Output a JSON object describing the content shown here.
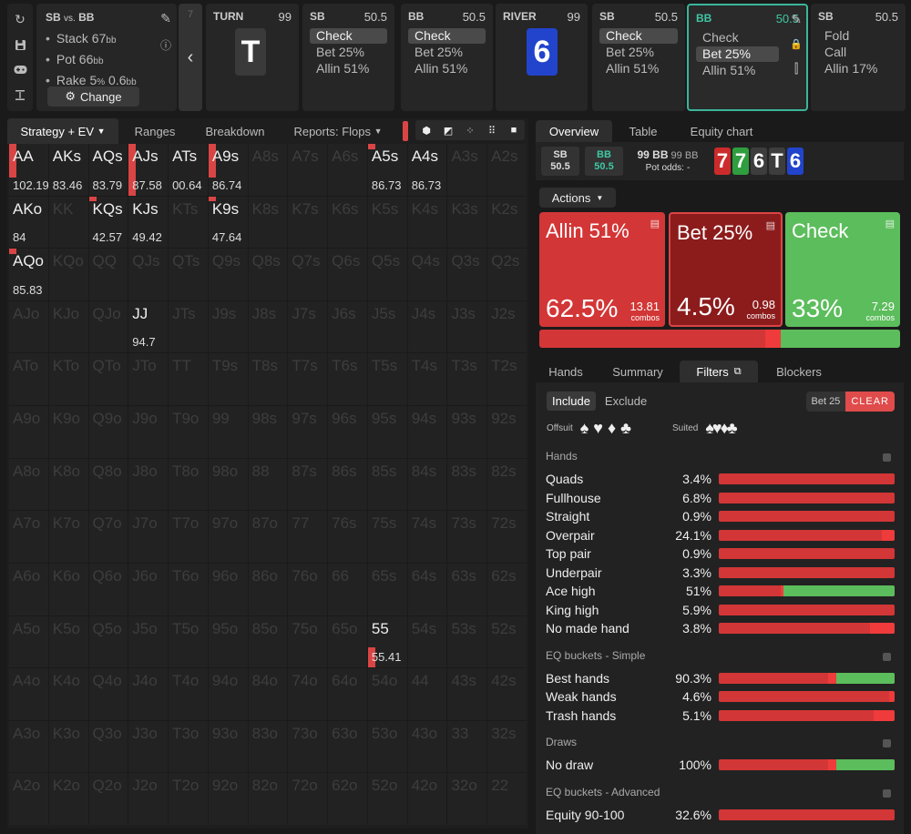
{
  "info": {
    "title_a": "SB",
    "title_vs": "vs.",
    "title_b": "BB",
    "stack_label": "Stack 67",
    "stack_unit": "bb",
    "pot_label": "Pot 66",
    "pot_unit": "bb",
    "rake_label": "Rake 5",
    "rake_pct": "%",
    "rake_cap": " 0.6",
    "rake_unit": "bb",
    "change_label": "Change"
  },
  "nav": {
    "num": "7"
  },
  "nodes": [
    {
      "player": "TURN",
      "value": "99",
      "card": "T",
      "color": "#3a3a3a"
    },
    {
      "player": "SB",
      "value": "50.5",
      "actions": [
        {
          "t": "Check",
          "sel": true
        },
        {
          "t": "Bet 25%",
          "sel": false
        },
        {
          "t": "Allin 51%",
          "sel": false
        }
      ]
    },
    {
      "player": "BB",
      "value": "50.5",
      "actions": [
        {
          "t": "Check",
          "sel": true
        },
        {
          "t": "Bet 25%",
          "sel": false
        },
        {
          "t": "Allin 51%",
          "sel": false
        }
      ]
    },
    {
      "player": "RIVER",
      "value": "99",
      "card": "6",
      "color": "#2244cc"
    },
    {
      "player": "SB",
      "value": "50.5",
      "actions": [
        {
          "t": "Check",
          "sel": true
        },
        {
          "t": "Bet 25%",
          "sel": false
        },
        {
          "t": "Allin 51%",
          "sel": false
        }
      ]
    },
    {
      "player": "BB",
      "value": "50.5",
      "actions": [
        {
          "t": "Check",
          "sel": false
        },
        {
          "t": "Bet 25%",
          "sel": true
        },
        {
          "t": "Allin 51%",
          "sel": false
        }
      ]
    },
    {
      "player": "SB",
      "value": "50.5",
      "actions": [
        {
          "t": "Fold",
          "sel": false
        },
        {
          "t": "Call",
          "sel": false
        },
        {
          "t": "Allin 17%",
          "sel": false
        }
      ]
    }
  ],
  "grid_tabs": [
    "Strategy + EV",
    "Ranges",
    "Breakdown",
    "Reports: Flops"
  ],
  "grid": {
    "ranks": [
      "A",
      "K",
      "Q",
      "J",
      "T",
      "9",
      "8",
      "7",
      "6",
      "5",
      "4",
      "3",
      "2"
    ],
    "cells": {
      "AA": {
        "ev": "102.19",
        "bar": 0.65
      },
      "AKs": {
        "ev": "83.46",
        "bar": 0
      },
      "AQs": {
        "ev": "83.79",
        "bar": 0
      },
      "AJs": {
        "ev": "87.58",
        "bar": 1.0
      },
      "ATs": {
        "ev": "00.64",
        "bar": 0
      },
      "A9s": {
        "ev": "86.74",
        "bar": 0.65
      },
      "A5s": {
        "ev": "86.73",
        "bar": 0.1
      },
      "A4s": {
        "ev": "86.73",
        "bar": 0
      },
      "AKo": {
        "ev": "84",
        "bar": 0
      },
      "KQs": {
        "ev": "42.57",
        "bar": 0.1
      },
      "KJs": {
        "ev": "49.42",
        "bar": 0
      },
      "K9s": {
        "ev": "47.64",
        "bar": 0.1
      },
      "AQo": {
        "ev": "85.83",
        "bar": 0.1
      },
      "JJ": {
        "ev": "94.7",
        "bar": 0
      },
      "55": {
        "ev": "55.41",
        "bar": 0.4
      }
    }
  },
  "right_tabs": [
    "Overview",
    "Table",
    "Equity chart"
  ],
  "summary": {
    "sb_label": "SB",
    "sb_val": "50.5",
    "bb_label": "BB",
    "bb_val": "50.5",
    "pot_main": "99 BB",
    "pot_side": "99 BB",
    "pot_odds_label": "Pot odds:",
    "pot_odds_val": "-",
    "board": [
      {
        "r": "7",
        "c": "#cc2b2b"
      },
      {
        "r": "7",
        "c": "#2f9e3e"
      },
      {
        "r": "6",
        "c": "#3d3d3d"
      },
      {
        "r": "T",
        "c": "#3d3d3d"
      },
      {
        "r": "6",
        "c": "#2244cc"
      }
    ]
  },
  "actions_label": "Actions",
  "actions": [
    {
      "label": "Allin 51%",
      "pct": "62.5%",
      "combos": "13.81",
      "combos_label": "combos",
      "color": "#d33636",
      "freq": 0.625
    },
    {
      "label": "Bet 25%",
      "pct": "4.5%",
      "combos": "0.98",
      "combos_label": "combos",
      "color": "#8c1c1c",
      "freq": 0.045
    },
    {
      "label": "Check",
      "pct": "33%",
      "combos": "7.29",
      "combos_label": "combos",
      "color": "#5cbd5c",
      "freq": 0.33
    }
  ],
  "bottom_tabs": [
    "Hands",
    "Summary",
    "Filters",
    "Blockers"
  ],
  "filters": {
    "include": "Include",
    "exclude": "Exclude",
    "bet_pill": "Bet 25",
    "clear": "CLEAR",
    "offsuit_label": "Offsuit",
    "offsuit_suits": "♠♥♦♣",
    "suited_label": "Suited",
    "suited_suits": "♠♥♦♣"
  },
  "filter_sections": [
    {
      "title": "Hands",
      "rows": [
        {
          "name": "Quads",
          "pct": "3.4%",
          "red": 1.0,
          "dark": 0,
          "green": 0
        },
        {
          "name": "Fullhouse",
          "pct": "6.8%",
          "red": 1.0,
          "dark": 0,
          "green": 0
        },
        {
          "name": "Straight",
          "pct": "0.9%",
          "red": 1.0,
          "dark": 0,
          "green": 0
        },
        {
          "name": "Overpair",
          "pct": "24.1%",
          "red": 0.93,
          "dark": 0.07,
          "green": 0
        },
        {
          "name": "Top pair",
          "pct": "0.9%",
          "red": 1.0,
          "dark": 0,
          "green": 0
        },
        {
          "name": "Underpair",
          "pct": "3.3%",
          "red": 1.0,
          "dark": 0,
          "green": 0
        },
        {
          "name": "Ace high",
          "pct": "51%",
          "red": 0.35,
          "dark": 0.02,
          "green": 0.63
        },
        {
          "name": "King high",
          "pct": "5.9%",
          "red": 1.0,
          "dark": 0,
          "green": 0
        },
        {
          "name": "No made hand",
          "pct": "3.8%",
          "red": 0.86,
          "dark": 0.14,
          "green": 0
        }
      ]
    },
    {
      "title": "EQ buckets - Simple",
      "rows": [
        {
          "name": "Best hands",
          "pct": "90.3%",
          "red": 0.62,
          "dark": 0.05,
          "green": 0.33
        },
        {
          "name": "Weak hands",
          "pct": "4.6%",
          "red": 0.97,
          "dark": 0.03,
          "green": 0
        },
        {
          "name": "Trash hands",
          "pct": "5.1%",
          "red": 0.88,
          "dark": 0.12,
          "green": 0
        }
      ]
    },
    {
      "title": "Draws",
      "rows": [
        {
          "name": "No draw",
          "pct": "100%",
          "red": 0.62,
          "dark": 0.05,
          "green": 0.33
        }
      ]
    },
    {
      "title": "EQ buckets - Advanced",
      "rows": [
        {
          "name": "Equity 90-100",
          "pct": "32.6%",
          "red": 1.0,
          "dark": 0,
          "green": 0
        }
      ]
    }
  ]
}
